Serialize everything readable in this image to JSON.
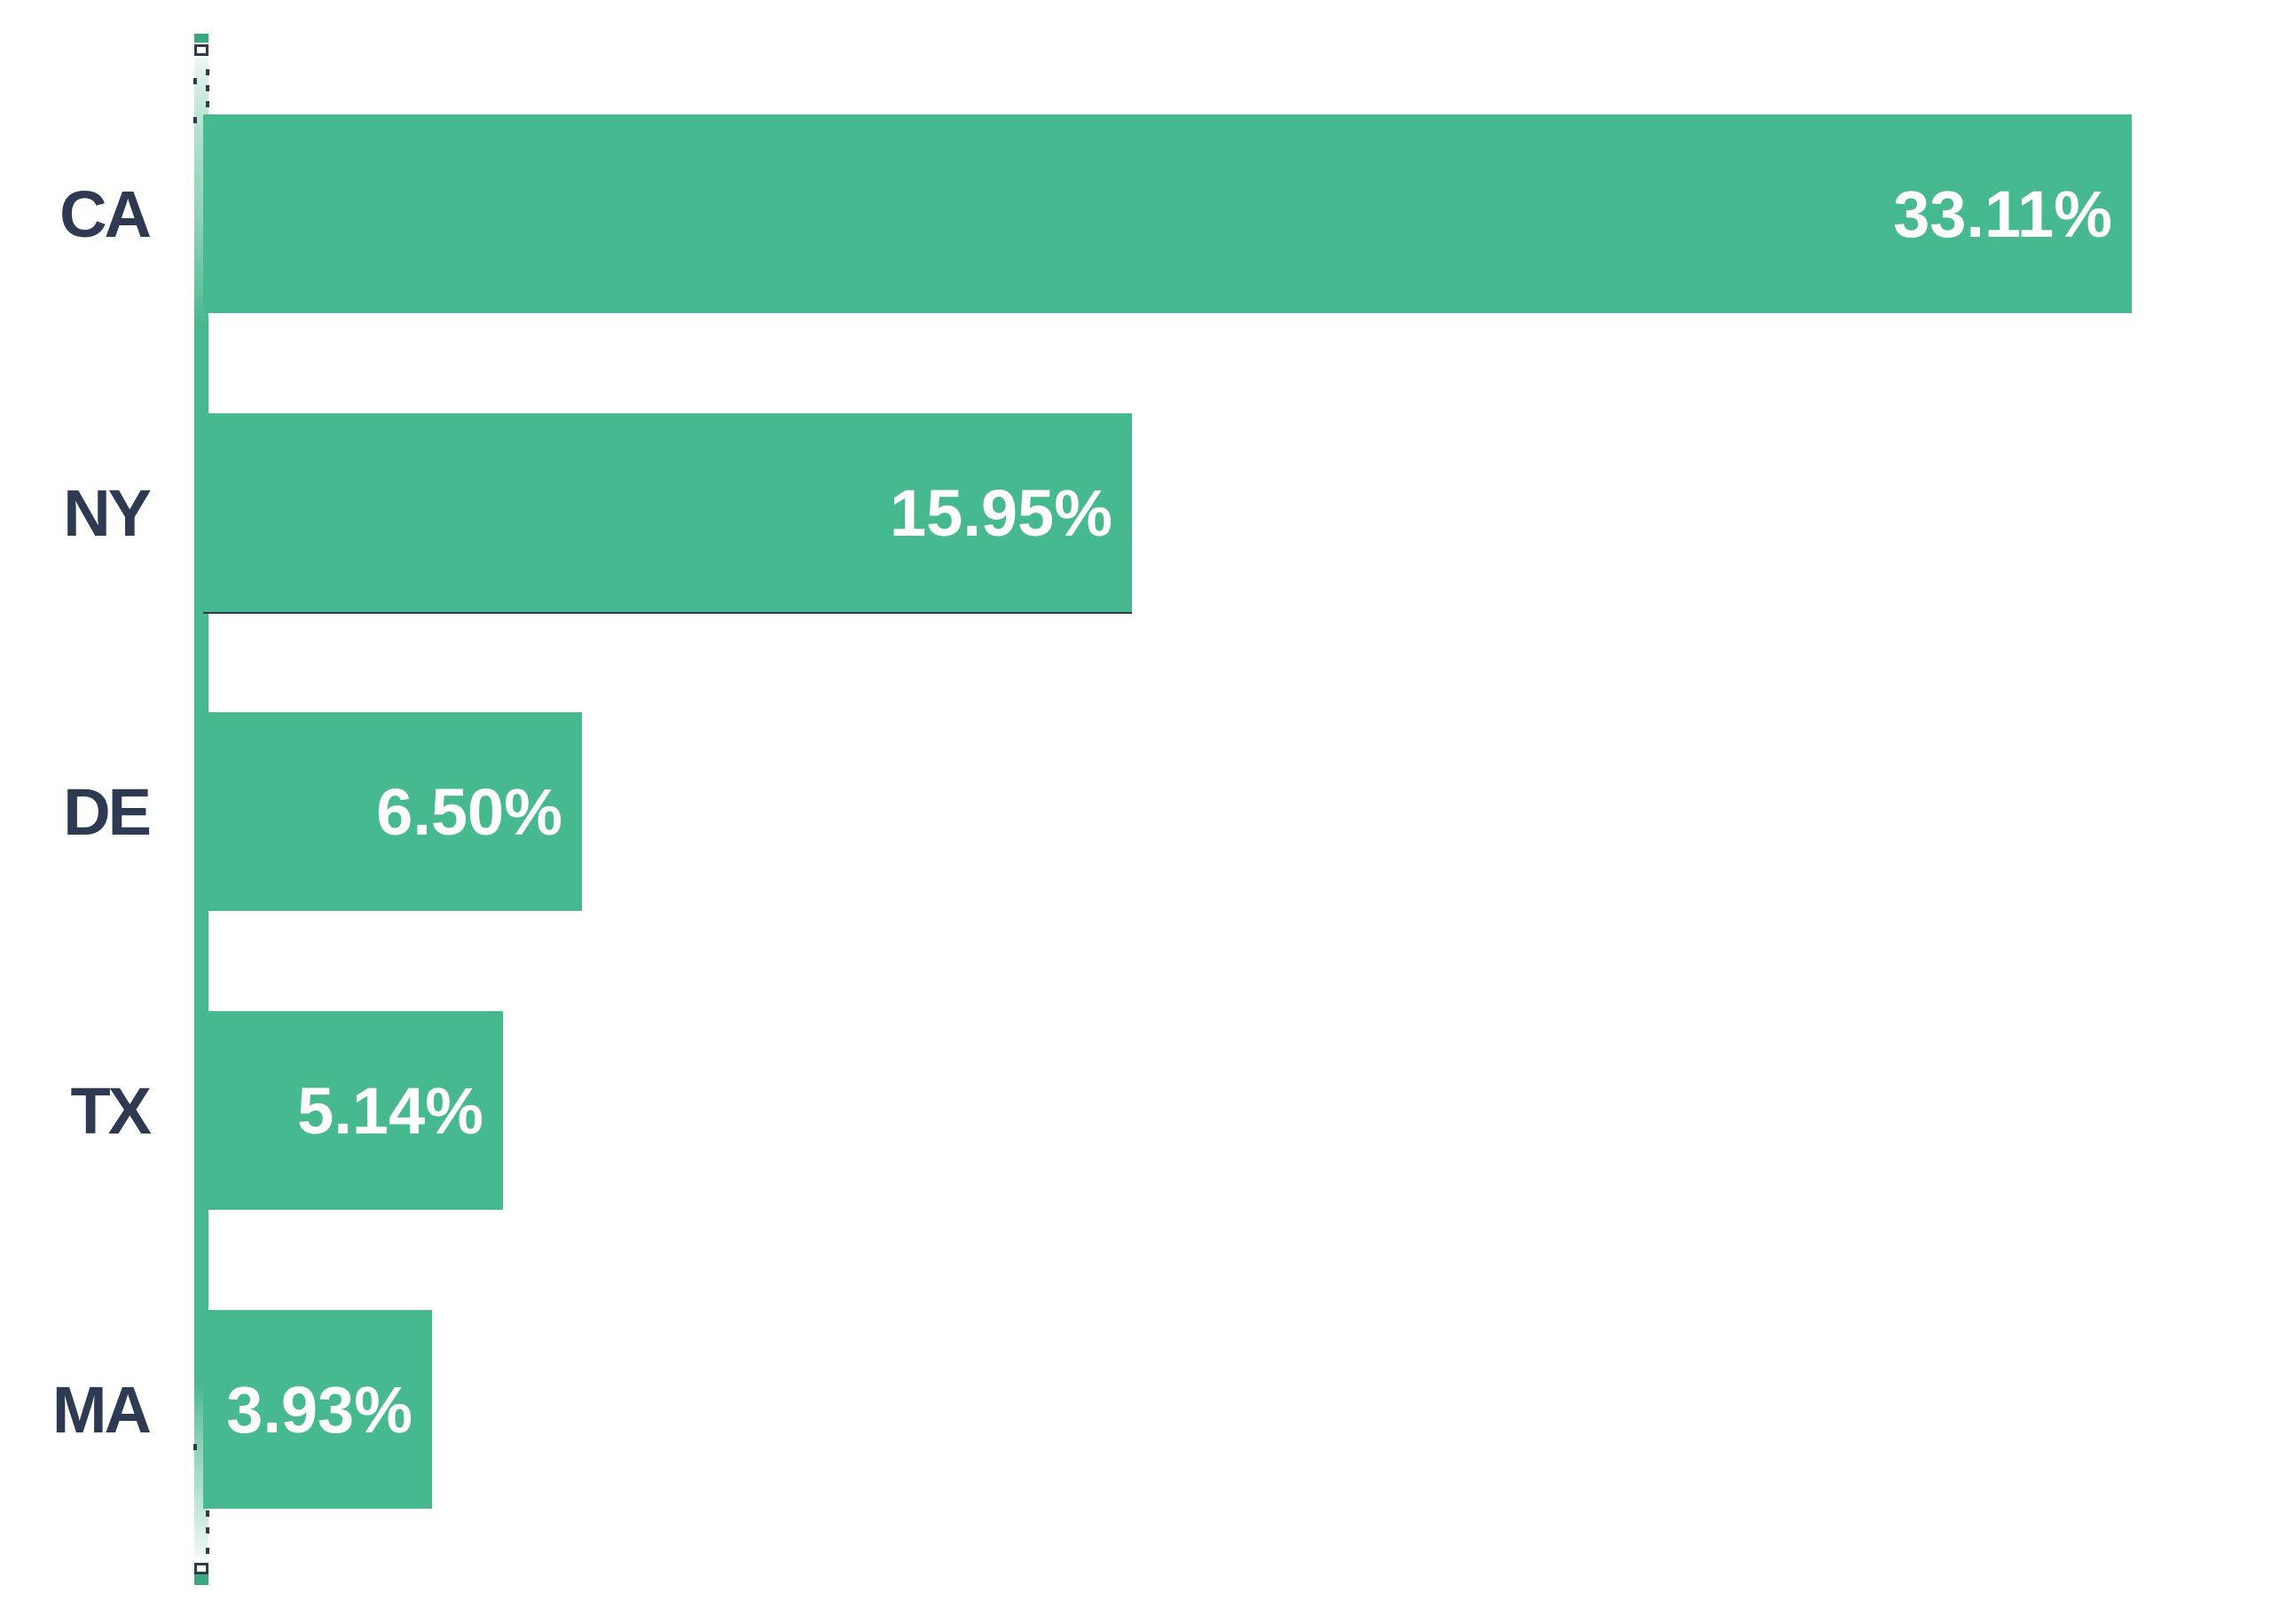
{
  "chart_data": {
    "type": "bar",
    "orientation": "horizontal",
    "title": "",
    "xlabel": "",
    "ylabel": "",
    "categories": [
      "CA",
      "NY",
      "DE",
      "TX",
      "MA"
    ],
    "values": [
      33.11,
      15.95,
      6.5,
      5.14,
      3.93
    ],
    "value_labels": [
      "33.11%",
      "15.95%",
      "6.50%",
      "5.14%",
      "3.93%"
    ],
    "value_label_position": "inside-end",
    "xlim": [
      0,
      35.5
    ],
    "grid": false,
    "legend": false,
    "background": "#ffffff",
    "bar_color": "#47b98e",
    "axis_cap_color": "#3aa87f",
    "category_label_color": "#2e3a52",
    "value_label_color": "#ffffff",
    "bottom_edge_line_category": "NY"
  }
}
